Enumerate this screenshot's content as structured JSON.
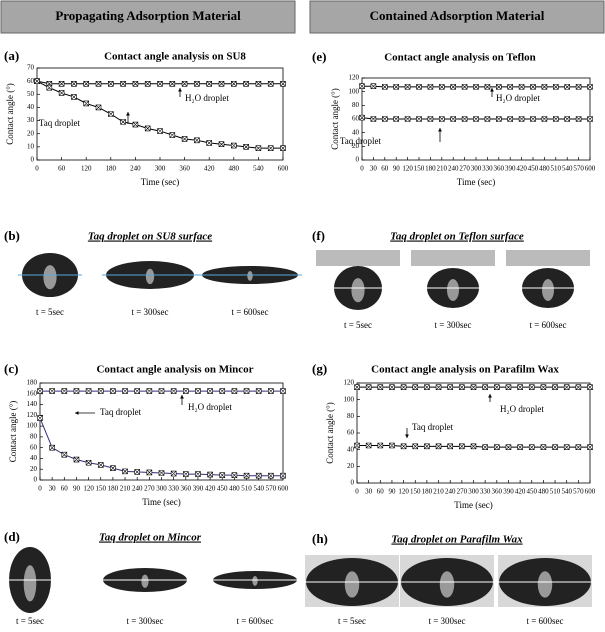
{
  "headers": [
    "Propagating Adsorption Material",
    "Contained Adsorption Material"
  ],
  "chart_data": [
    {
      "type": "line",
      "panel": "(a)",
      "title": "Contact angle analysis on SU8",
      "x_label": "Time (sec)",
      "y_label": "Contact angle (°)",
      "x": [
        0,
        30,
        60,
        90,
        120,
        150,
        180,
        210,
        240,
        270,
        300,
        330,
        360,
        390,
        420,
        450,
        480,
        510,
        540,
        570,
        600
      ],
      "xlim": [
        0,
        600
      ],
      "xticks": [
        0,
        60,
        120,
        180,
        240,
        300,
        360,
        420,
        480,
        540,
        600
      ],
      "ylim": [
        0,
        70
      ],
      "yticks": [
        0,
        10,
        20,
        30,
        40,
        50,
        60,
        70
      ],
      "series": [
        {
          "name": "H₂O droplet",
          "color": "#000000",
          "values": [
            60,
            58,
            58,
            58,
            58,
            58,
            58,
            58,
            58,
            58,
            58,
            58,
            58,
            58,
            58,
            58,
            58,
            58,
            58,
            58,
            58
          ]
        },
        {
          "name": "Taq droplet",
          "color": "#000000",
          "values": [
            60,
            55,
            51,
            48,
            43,
            40,
            35,
            29,
            27,
            24,
            22,
            19,
            16,
            15,
            13,
            12,
            11,
            10,
            9,
            9,
            9
          ]
        }
      ]
    },
    {
      "type": "line",
      "panel": "(e)",
      "title": "Contact angle analysis on Teflon",
      "x_label": "Time (sec)",
      "y_label": "Contact angle (°)",
      "x": [
        0,
        30,
        60,
        90,
        120,
        150,
        180,
        210,
        240,
        270,
        300,
        330,
        360,
        390,
        420,
        450,
        480,
        510,
        540,
        570,
        600
      ],
      "xlim": [
        0,
        600
      ],
      "xticks": [
        0,
        30,
        60,
        90,
        120,
        150,
        180,
        210,
        240,
        270,
        300,
        330,
        360,
        390,
        420,
        450,
        480,
        510,
        540,
        570,
        600
      ],
      "ylim": [
        0,
        120
      ],
      "yticks": [
        0,
        20,
        40,
        60,
        80,
        100,
        120
      ],
      "series": [
        {
          "name": "H₂O droplet",
          "color": "#000000",
          "values": [
            108,
            108,
            107,
            107,
            107,
            107,
            107,
            107,
            107,
            107,
            107,
            107,
            107,
            107,
            107,
            107,
            107,
            107,
            107,
            107,
            107
          ]
        },
        {
          "name": "Taq droplet",
          "color": "#000000",
          "values": [
            62,
            60,
            60,
            60,
            60,
            60,
            60,
            60,
            60,
            60,
            60,
            60,
            60,
            60,
            60,
            60,
            60,
            60,
            60,
            60,
            60
          ]
        }
      ]
    },
    {
      "type": "line",
      "panel": "(c)",
      "title": "Contact angle analysis on Mincor",
      "x_label": "Time (sec)",
      "y_label": "Contact angle (°)",
      "x": [
        0,
        30,
        60,
        90,
        120,
        150,
        180,
        210,
        240,
        270,
        300,
        330,
        360,
        390,
        420,
        450,
        480,
        510,
        540,
        570,
        600
      ],
      "xlim": [
        0,
        600
      ],
      "xticks": [
        0,
        30,
        60,
        90,
        120,
        150,
        180,
        210,
        240,
        270,
        300,
        330,
        360,
        390,
        420,
        450,
        480,
        510,
        540,
        570,
        600
      ],
      "ylim": [
        0,
        180
      ],
      "yticks": [
        0,
        20,
        40,
        60,
        80,
        100,
        120,
        140,
        160,
        180
      ],
      "series": [
        {
          "name": "H₂O droplet",
          "color": "#3a2a7a",
          "values": [
            165,
            165,
            165,
            165,
            165,
            165,
            165,
            165,
            165,
            165,
            165,
            165,
            165,
            165,
            165,
            165,
            165,
            165,
            165,
            165,
            165
          ]
        },
        {
          "name": "Taq droplet",
          "color": "#3a2a7a",
          "values": [
            115,
            60,
            47,
            38,
            32,
            28,
            22,
            16,
            15,
            14,
            13,
            12,
            11,
            11,
            10,
            9,
            9,
            8,
            8,
            8,
            8
          ]
        }
      ]
    },
    {
      "type": "line",
      "panel": "(g)",
      "title": "Contact angle analysis on Parafilm Wax",
      "x_label": "Time (sec)",
      "y_label": "Contact angle (°)",
      "x": [
        0,
        30,
        60,
        90,
        120,
        150,
        180,
        210,
        240,
        270,
        300,
        330,
        360,
        390,
        420,
        450,
        480,
        510,
        540,
        570,
        600
      ],
      "xlim": [
        0,
        600
      ],
      "xticks": [
        0,
        30,
        60,
        90,
        120,
        150,
        180,
        210,
        240,
        270,
        300,
        330,
        360,
        390,
        420,
        450,
        480,
        510,
        540,
        570,
        600
      ],
      "ylim": [
        0,
        120
      ],
      "yticks": [
        0,
        20,
        40,
        60,
        80,
        100,
        120
      ],
      "series": [
        {
          "name": "H₂O droplet",
          "color": "#000000",
          "values": [
            115,
            115,
            115,
            115,
            115,
            115,
            115,
            115,
            115,
            115,
            115,
            115,
            115,
            115,
            115,
            115,
            115,
            115,
            115,
            115,
            115
          ]
        },
        {
          "name": "Taq droplet",
          "color": "#000000",
          "values": [
            45,
            45,
            45,
            45,
            44,
            44,
            44,
            44,
            44,
            44,
            44,
            43,
            43,
            43,
            43,
            43,
            43,
            43,
            43,
            43,
            43
          ]
        }
      ]
    }
  ],
  "photo_panels": [
    {
      "panel": "(b)",
      "title": "Taq droplet on SU8 surface",
      "times": [
        "t = 5sec",
        "t = 300sec",
        "t = 600sec"
      ]
    },
    {
      "panel": "(f)",
      "title": "Taq droplet on Teflon surface",
      "times": [
        "t = 5sec",
        "t = 300sec",
        "t = 600sec"
      ]
    },
    {
      "panel": "(d)",
      "title": "Taq droplet on Mincor",
      "times": [
        "t = 5sec",
        "t = 300sec",
        "t = 600sec"
      ]
    },
    {
      "panel": "(h)",
      "title": "Taq droplet on Parafilm Wax",
      "times": [
        "t = 5sec",
        "t = 300sec",
        "t = 600sec"
      ]
    }
  ]
}
